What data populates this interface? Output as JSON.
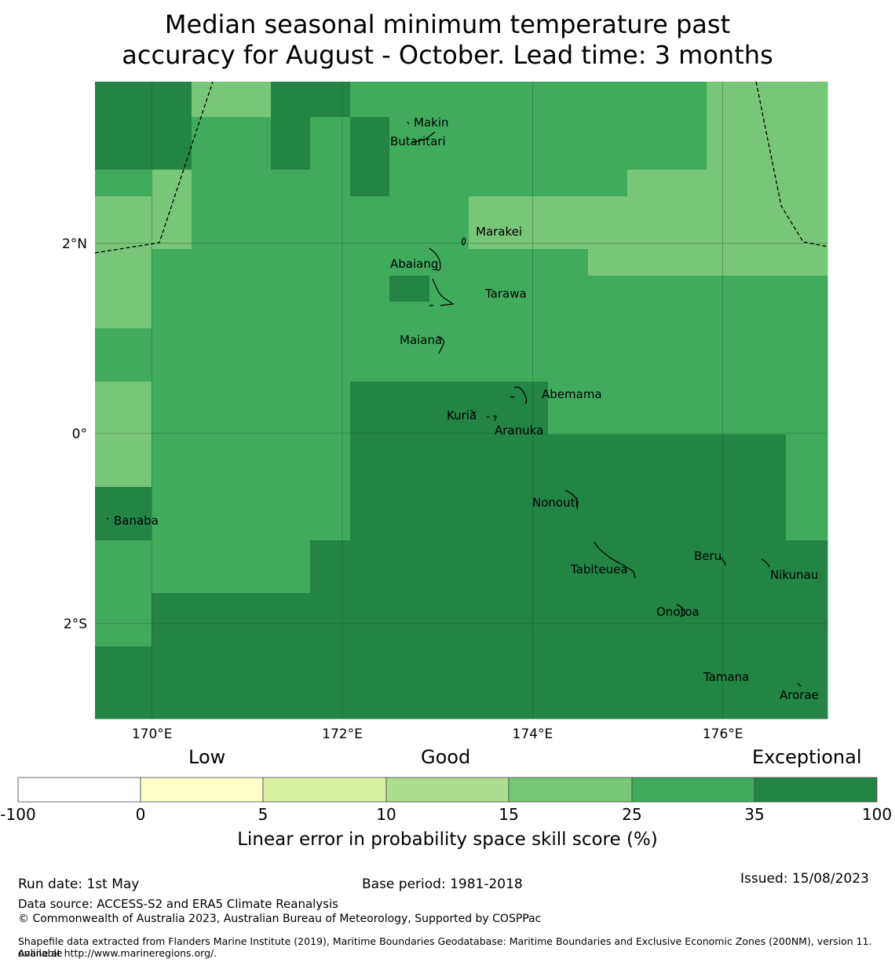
{
  "title": {
    "line1": "Median seasonal minimum temperature past",
    "line2": "accuracy for August - October. Lead time: 3 months"
  },
  "map": {
    "extent": {
      "lon_min": 169.4,
      "lon_max": 177.1,
      "lat_min": -3.0,
      "lat_max": 3.7
    },
    "lon_ticks": [
      {
        "value": 170,
        "label": "170°E"
      },
      {
        "value": 172,
        "label": "172°E"
      },
      {
        "value": 174,
        "label": "174°E"
      },
      {
        "value": 176,
        "label": "176°E"
      }
    ],
    "lat_ticks": [
      {
        "value": 2,
        "label": "2°N"
      },
      {
        "value": 0,
        "label": "0°"
      },
      {
        "value": -2,
        "label": "2°S"
      }
    ],
    "colors": {
      "c2": "#78c679",
      "c3": "#41ab5d",
      "c4": "#238443"
    },
    "skill_grid": [
      [
        "c4",
        "c4",
        "c2",
        "c2",
        "c4",
        "c4",
        "c3",
        "c3",
        "c3",
        "c3",
        "c3",
        "c3",
        "c3",
        "c3",
        "c2",
        "c2"
      ],
      [
        "c4",
        "c4",
        "c3",
        "c3",
        "c4",
        "c3",
        "c4",
        "c3",
        "c3",
        "c3",
        "c3",
        "c3",
        "c3",
        "c3",
        "c2",
        "c2"
      ],
      [
        "c4",
        "c4",
        "c3",
        "c3",
        "c4",
        "c3",
        "c4",
        "c3",
        "c3",
        "c3",
        "c3",
        "c3",
        "c3",
        "c3",
        "c2",
        "c2"
      ],
      [
        "c3",
        "c2",
        "c3",
        "c3",
        "c3",
        "c3",
        "c4",
        "c3",
        "c3",
        "c3",
        "c3",
        "c3",
        "c3",
        "c2",
        "c2",
        "c2"
      ],
      [
        "c2",
        "c2",
        "c3",
        "c3",
        "c3",
        "c3",
        "c3",
        "c3",
        "c3",
        "c2",
        "c2",
        "c2",
        "c2",
        "c2",
        "c2",
        "c2"
      ],
      [
        "c2",
        "c2",
        "c3",
        "c3",
        "c3",
        "c3",
        "c3",
        "c3",
        "c3",
        "c2",
        "c2",
        "c2",
        "c2",
        "c2",
        "c2",
        "c2"
      ],
      [
        "c2",
        "c3",
        "c3",
        "c3",
        "c3",
        "c3",
        "c3",
        "c3",
        "c3",
        "c3",
        "c3",
        "c3",
        "c2",
        "c2",
        "c2",
        "c2"
      ],
      [
        "c2",
        "c3",
        "c3",
        "c3",
        "c3",
        "c3",
        "c3",
        "c4",
        "c3",
        "c3",
        "c3",
        "c3",
        "c3",
        "c3",
        "c3",
        "c3"
      ],
      [
        "c2",
        "c3",
        "c3",
        "c3",
        "c3",
        "c3",
        "c3",
        "c3",
        "c3",
        "c3",
        "c3",
        "c3",
        "c3",
        "c3",
        "c3",
        "c3"
      ],
      [
        "c3",
        "c3",
        "c3",
        "c3",
        "c3",
        "c3",
        "c3",
        "c3",
        "c3",
        "c3",
        "c3",
        "c3",
        "c3",
        "c3",
        "c3",
        "c3"
      ],
      [
        "c2",
        "c3",
        "c3",
        "c3",
        "c3",
        "c3",
        "c4",
        "c4",
        "c4",
        "c4",
        "c4",
        "c3",
        "c3",
        "c3",
        "c3",
        "c3"
      ],
      [
        "c2",
        "c3",
        "c3",
        "c3",
        "c3",
        "c3",
        "c4",
        "c4",
        "c4",
        "c4",
        "c4",
        "c4",
        "c4",
        "c4",
        "c4",
        "c3"
      ],
      [
        "c4",
        "c3",
        "c3",
        "c3",
        "c3",
        "c3",
        "c4",
        "c4",
        "c4",
        "c4",
        "c4",
        "c4",
        "c4",
        "c4",
        "c4",
        "c3"
      ],
      [
        "c3",
        "c3",
        "c3",
        "c3",
        "c3",
        "c4",
        "c4",
        "c4",
        "c4",
        "c4",
        "c4",
        "c4",
        "c4",
        "c4",
        "c4",
        "c4"
      ],
      [
        "c3",
        "c4",
        "c4",
        "c4",
        "c4",
        "c4",
        "c4",
        "c4",
        "c4",
        "c4",
        "c4",
        "c4",
        "c4",
        "c4",
        "c4",
        "c4"
      ],
      [
        "c4",
        "c4",
        "c4",
        "c4",
        "c4",
        "c4",
        "c4",
        "c4",
        "c4",
        "c4",
        "c4",
        "c4",
        "c4",
        "c4",
        "c4",
        "c4"
      ]
    ],
    "skill_overrides": [
      {
        "row": 0,
        "col": 1,
        "color": "c4"
      },
      {
        "row": 1,
        "col": 3,
        "color": "c3"
      }
    ],
    "places": [
      {
        "name": "Makin",
        "lon": 172.75,
        "lat": 3.27
      },
      {
        "name": "Butaritari",
        "lon": 172.5,
        "lat": 3.07
      },
      {
        "name": "Marakei",
        "lon": 173.4,
        "lat": 2.12
      },
      {
        "name": "Abaiang",
        "lon": 172.5,
        "lat": 1.78
      },
      {
        "name": "Tarawa",
        "lon": 173.5,
        "lat": 1.47
      },
      {
        "name": "Maiana",
        "lon": 172.6,
        "lat": 0.98
      },
      {
        "name": "Abemama",
        "lon": 174.1,
        "lat": 0.41
      },
      {
        "name": "Kuria",
        "lon": 173.1,
        "lat": 0.19
      },
      {
        "name": "Aranuka",
        "lon": 173.6,
        "lat": 0.03
      },
      {
        "name": "Nonouti",
        "lon": 174.0,
        "lat": -0.73
      },
      {
        "name": "Banaba",
        "lon": 169.6,
        "lat": -0.92
      },
      {
        "name": "Tabiteuea",
        "lon": 174.4,
        "lat": -1.43
      },
      {
        "name": "Beru",
        "lon": 175.7,
        "lat": -1.29
      },
      {
        "name": "Nikunau",
        "lon": 176.5,
        "lat": -1.49
      },
      {
        "name": "Onotoa",
        "lon": 175.3,
        "lat": -1.88
      },
      {
        "name": "Tamana",
        "lon": 175.8,
        "lat": -2.56
      },
      {
        "name": "Arorae",
        "lon": 176.6,
        "lat": -2.75
      }
    ]
  },
  "colorbar": {
    "category_labels": [
      "Low",
      "Good",
      "Exceptional"
    ],
    "colors": [
      "#ffffff",
      "#ffffcc",
      "#d9f0a3",
      "#addd8e",
      "#78c679",
      "#41ab5d",
      "#238443"
    ],
    "ticks": [
      "-100",
      "0",
      "5",
      "10",
      "15",
      "25",
      "35",
      "100"
    ],
    "label": "Linear error in probability space skill score (%)"
  },
  "footer": {
    "run_date": "Run date: 1st May",
    "base_period": "Base period: 1981-2018",
    "issued": "Issued: 15/08/2023",
    "data_source": "Data source: ACCESS-S2 and ERA5 Climate Reanalysis",
    "copyright": "© Commonwealth of Australia 2023, Australian Bureau of Meteorology, Supported by COSPPac",
    "shapefile_line1": "Shapefile data extracted from Flanders Marine Institute (2019), Maritime Boundaries Geodatabase: Maritime Boundaries and Exclusive Economic Zones (200NM), version 11. Available",
    "shapefile_line2": "online at http://www.marineregions.org/."
  }
}
